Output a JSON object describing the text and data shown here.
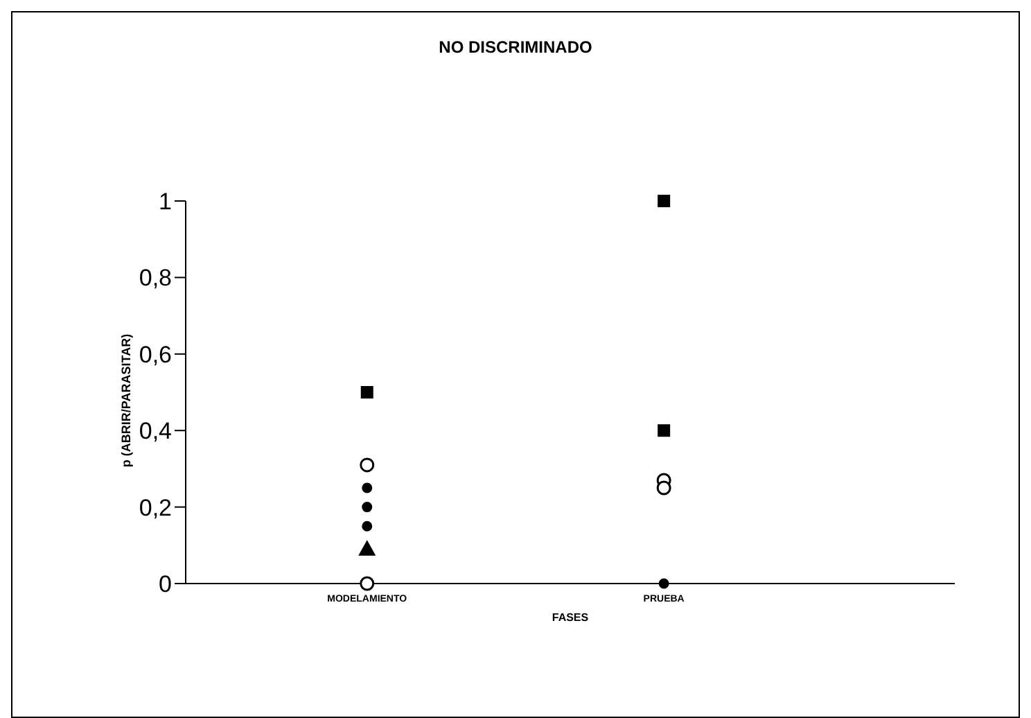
{
  "chart_data": {
    "type": "scatter",
    "title": "NO DISCRIMINADO",
    "xlabel": "FASES",
    "ylabel": "p (ABRIR/PARASITAR)",
    "categories": [
      "MODELAMIENTO",
      "PRUEBA"
    ],
    "ylim": [
      0,
      1
    ],
    "yticks": [
      0,
      {
        "value": 0.2,
        "label": "0,2"
      },
      {
        "value": 0.4,
        "label": "0,4"
      },
      {
        "value": 0.6,
        "label": "0,6"
      },
      {
        "value": 0.8,
        "label": "0,8"
      },
      1
    ],
    "grid": false,
    "legend": false,
    "series": [
      {
        "marker": "square",
        "color": "#000000",
        "x": [
          "MODELAMIENTO",
          "PRUEBA",
          "PRUEBA"
        ],
        "values": [
          0.5,
          1,
          0.4
        ]
      },
      {
        "marker": "circle",
        "color": "#ffffff",
        "x": [
          "MODELAMIENTO",
          "MODELAMIENTO",
          "PRUEBA",
          "PRUEBA"
        ],
        "values": [
          0.31,
          0,
          0.27,
          0.25
        ]
      },
      {
        "marker": "circle",
        "color": "#000000",
        "x": [
          "MODELAMIENTO",
          "MODELAMIENTO",
          "MODELAMIENTO",
          "PRUEBA"
        ],
        "values": [
          0.25,
          0.2,
          0.15,
          0
        ]
      },
      {
        "marker": "triangle",
        "color": "#000000",
        "x": [
          "MODELAMIENTO"
        ],
        "values": [
          0.09
        ]
      }
    ]
  }
}
